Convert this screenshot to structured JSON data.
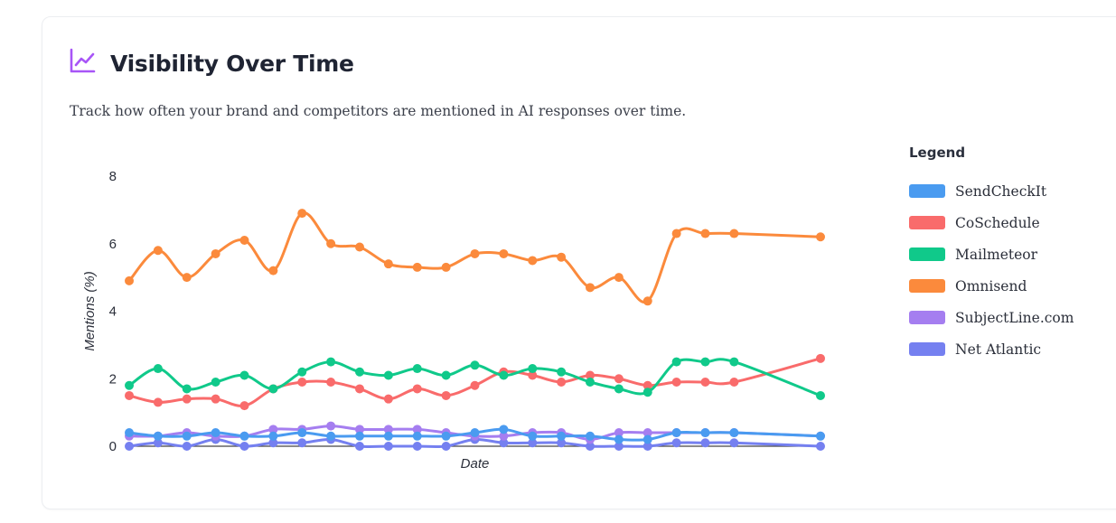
{
  "header": {
    "title": "Visibility Over Time",
    "subtitle": "Track how often your brand and competitors are mentioned in AI responses over time.",
    "icon": "line-chart-icon",
    "icon_color": "#a855f7"
  },
  "legend": {
    "title": "Legend"
  },
  "chart_data": {
    "type": "line",
    "xlabel": "Date",
    "ylabel": "Mentions (%)",
    "ylim": [
      0,
      8
    ],
    "yticks": [
      0,
      2,
      4,
      6,
      8
    ],
    "x": [
      1,
      2,
      3,
      4,
      5,
      6,
      7,
      8,
      9,
      10,
      11,
      12,
      13,
      14,
      15,
      16,
      17,
      18,
      19,
      20,
      21,
      22,
      25
    ],
    "legend_position": "right",
    "grid": false,
    "series": [
      {
        "name": "SendCheckIt",
        "color": "#4a9bf0",
        "values": [
          0.4,
          0.3,
          0.3,
          0.4,
          0.3,
          0.3,
          0.4,
          0.3,
          0.3,
          0.3,
          0.3,
          0.3,
          0.4,
          0.5,
          0.3,
          0.3,
          0.3,
          0.2,
          0.2,
          0.4,
          0.4,
          0.4,
          0.3
        ]
      },
      {
        "name": "CoSchedule",
        "color": "#f96b6b",
        "values": [
          1.5,
          1.3,
          1.4,
          1.4,
          1.2,
          1.7,
          1.9,
          1.9,
          1.7,
          1.4,
          1.7,
          1.5,
          1.8,
          2.2,
          2.1,
          1.9,
          2.1,
          2.0,
          1.8,
          1.9,
          1.9,
          1.9,
          2.6
        ]
      },
      {
        "name": "Mailmeteor",
        "color": "#10c98a",
        "values": [
          1.8,
          2.3,
          1.7,
          1.9,
          2.1,
          1.7,
          2.2,
          2.5,
          2.2,
          2.1,
          2.3,
          2.1,
          2.4,
          2.1,
          2.3,
          2.2,
          1.9,
          1.7,
          1.6,
          2.5,
          2.5,
          2.5,
          1.5
        ]
      },
      {
        "name": "Omnisend",
        "color": "#fb8a3c",
        "values": [
          4.9,
          5.8,
          5.0,
          5.7,
          6.1,
          5.2,
          6.9,
          6.0,
          5.9,
          5.4,
          5.3,
          5.3,
          5.7,
          5.7,
          5.5,
          5.6,
          4.7,
          5.0,
          4.3,
          6.3,
          6.3,
          6.3,
          6.2
        ]
      },
      {
        "name": "SubjectLine.com",
        "color": "#a57ef0",
        "values": [
          0.3,
          0.3,
          0.4,
          0.3,
          0.3,
          0.5,
          0.5,
          0.6,
          0.5,
          0.5,
          0.5,
          0.4,
          0.3,
          0.3,
          0.4,
          0.4,
          0.2,
          0.4,
          0.4,
          0.4,
          0.4,
          0.4,
          0.3
        ]
      },
      {
        "name": "Net Atlantic",
        "color": "#7580f0",
        "values": [
          0.0,
          0.1,
          0.0,
          0.2,
          0.0,
          0.1,
          0.1,
          0.2,
          0.0,
          0.0,
          0.0,
          0.0,
          0.2,
          0.1,
          0.1,
          0.1,
          0.0,
          0.0,
          0.0,
          0.1,
          0.1,
          0.1,
          0.0
        ]
      }
    ]
  }
}
